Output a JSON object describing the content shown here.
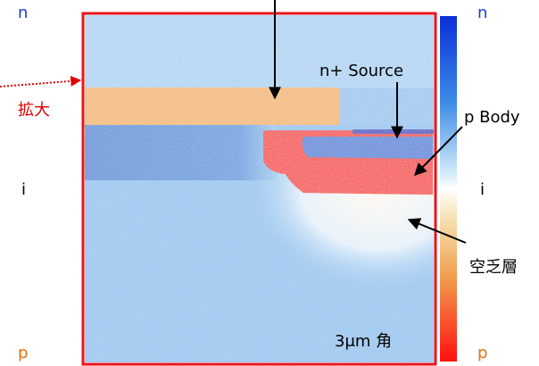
{
  "left_scale": {
    "top": "n",
    "middle": "i",
    "bottom": "p"
  },
  "right_scale": {
    "top": "n",
    "middle": "i",
    "bottom": "p"
  },
  "zoom_label": "拡大",
  "annotations": {
    "source": "n+ Source",
    "body": "p Body",
    "depletion": "空乏層"
  },
  "scale_label": "3μm 角"
}
